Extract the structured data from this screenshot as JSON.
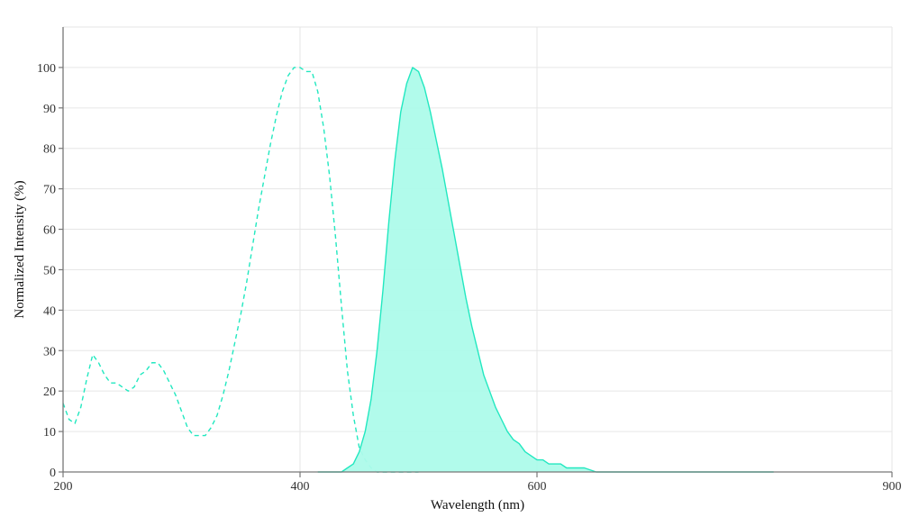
{
  "chart_data": {
    "type": "area",
    "title": "",
    "xlabel": "Wavelength (nm)",
    "ylabel": "Normalized Intensity (%)",
    "xlim": [
      200,
      900
    ],
    "ylim": [
      0,
      110
    ],
    "x_ticks": [
      200,
      400,
      600,
      900
    ],
    "y_ticks": [
      0,
      10,
      20,
      30,
      40,
      50,
      60,
      70,
      80,
      90,
      100
    ],
    "grid": true,
    "legend": "none",
    "colors": {
      "line": "#22e8c0",
      "fill": "#adfbea",
      "axis": "#777777",
      "grid": "#e6e6e6"
    },
    "series": [
      {
        "style": "dashed",
        "filled": false,
        "x": [
          200,
          205,
          210,
          215,
          220,
          225,
          230,
          235,
          240,
          245,
          250,
          255,
          260,
          265,
          270,
          275,
          280,
          285,
          290,
          295,
          300,
          305,
          310,
          315,
          320,
          325,
          330,
          335,
          340,
          345,
          350,
          355,
          360,
          365,
          370,
          375,
          380,
          385,
          390,
          395,
          400,
          405,
          410,
          415,
          420,
          425,
          430,
          435,
          440,
          445,
          450,
          455,
          460,
          465,
          470,
          475,
          480,
          485,
          490,
          495,
          500
        ],
        "y": [
          17,
          13,
          12,
          16,
          23,
          29,
          27,
          24,
          22,
          22,
          21,
          20,
          21,
          24,
          25,
          27,
          27,
          25,
          22,
          19,
          15,
          11,
          9,
          9,
          9,
          11,
          14,
          19,
          25,
          32,
          39,
          47,
          56,
          65,
          73,
          81,
          88,
          94,
          98,
          100,
          100,
          99,
          99,
          94,
          85,
          73,
          58,
          41,
          25,
          14,
          6,
          3,
          1,
          0,
          0,
          0,
          0,
          0,
          0,
          0,
          0
        ]
      },
      {
        "style": "solid",
        "filled": true,
        "x": [
          415,
          430,
          435,
          440,
          445,
          450,
          455,
          460,
          465,
          470,
          475,
          480,
          485,
          490,
          495,
          500,
          505,
          510,
          515,
          520,
          525,
          530,
          535,
          540,
          545,
          550,
          555,
          560,
          565,
          570,
          575,
          580,
          585,
          590,
          595,
          600,
          605,
          610,
          615,
          620,
          625,
          630,
          640,
          650,
          660,
          670,
          680,
          700,
          720,
          760,
          800
        ],
        "y": [
          0,
          0,
          0,
          1,
          2,
          5,
          10,
          18,
          30,
          45,
          62,
          77,
          89,
          96,
          100,
          99,
          95,
          89,
          82,
          75,
          67,
          59,
          51,
          43,
          36,
          30,
          24,
          20,
          16,
          13,
          10,
          8,
          7,
          5,
          4,
          3,
          3,
          2,
          2,
          2,
          1,
          1,
          1,
          0,
          0,
          0,
          0,
          0,
          0,
          0,
          0
        ]
      }
    ]
  }
}
